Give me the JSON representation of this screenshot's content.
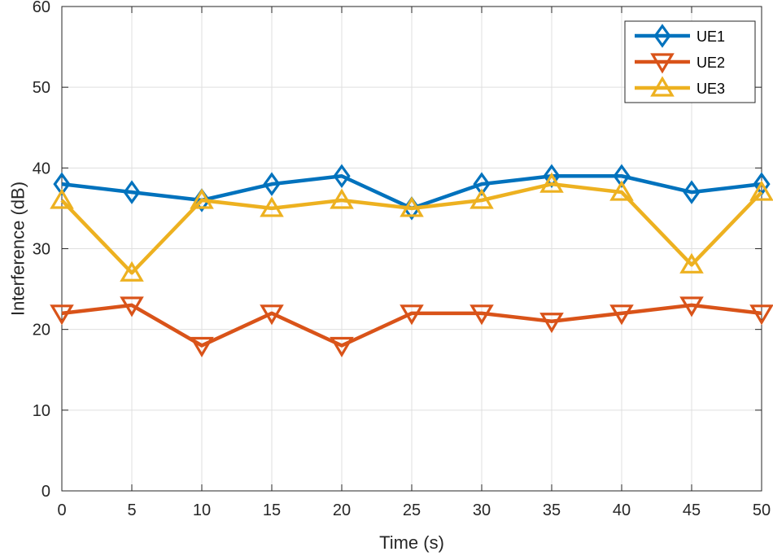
{
  "chart_data": {
    "type": "line",
    "title": "",
    "xlabel": "Time (s)",
    "ylabel": "Interference (dB)",
    "xlim": [
      0,
      50
    ],
    "ylim": [
      0,
      60
    ],
    "grid": true,
    "legend_position": "top-right",
    "x": [
      0,
      5,
      10,
      15,
      20,
      25,
      30,
      35,
      40,
      45,
      50
    ],
    "x_ticks": [
      "0",
      "5",
      "10",
      "15",
      "20",
      "25",
      "30",
      "35",
      "40",
      "45",
      "50"
    ],
    "y_ticks": [
      "0",
      "10",
      "20",
      "30",
      "40",
      "50",
      "60"
    ],
    "series": [
      {
        "name": "UE1",
        "color": "#0072BD",
        "marker": "diamond",
        "values": [
          38,
          37,
          36,
          38,
          39,
          35,
          38,
          39,
          39,
          37,
          38
        ]
      },
      {
        "name": "UE2",
        "color": "#D95319",
        "marker": "triangle-down",
        "values": [
          22,
          23,
          18,
          22,
          18,
          22,
          22,
          21,
          22,
          23,
          22
        ]
      },
      {
        "name": "UE3",
        "color": "#EDB120",
        "marker": "triangle-up",
        "values": [
          36,
          27,
          36,
          35,
          36,
          35,
          36,
          38,
          37,
          28,
          37
        ]
      }
    ]
  }
}
